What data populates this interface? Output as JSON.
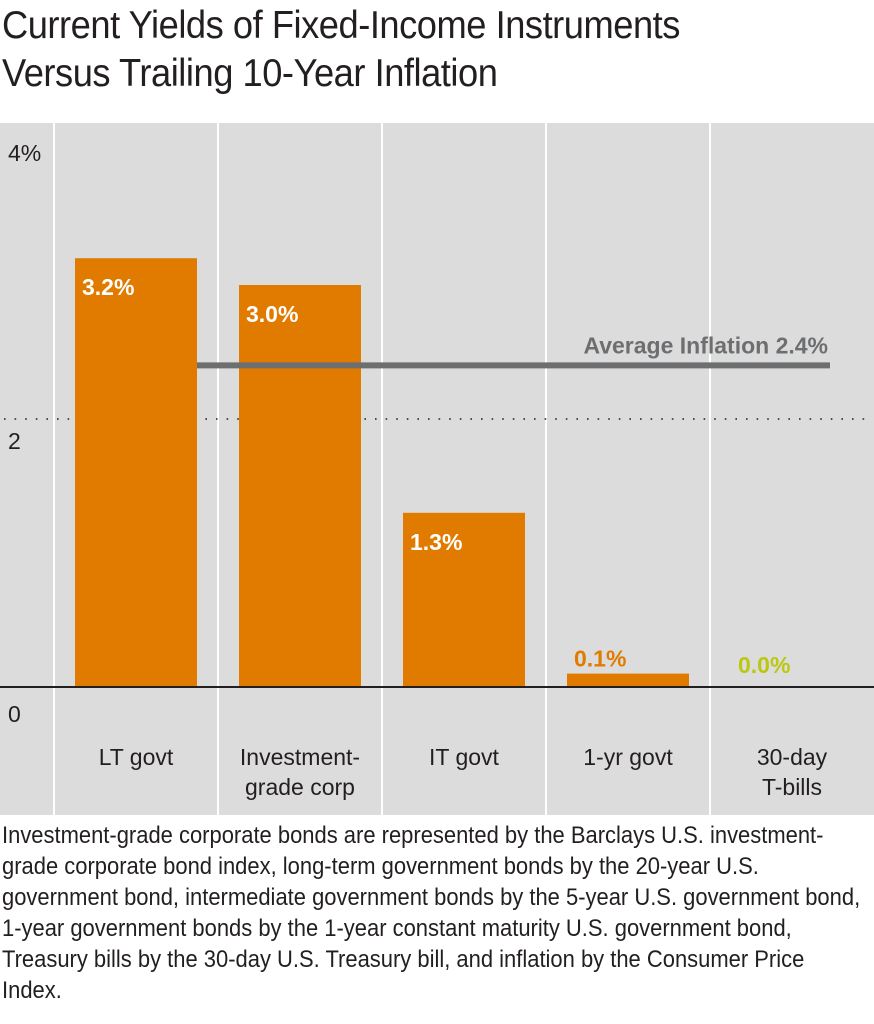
{
  "title_lines": [
    "Current Yields of Fixed-Income Instruments",
    "Versus Trailing 10-Year Inflation"
  ],
  "footnote": "Investment-grade corporate bonds are represented by the Barclays U.S. investment-grade corporate bond index, long-term government bonds by the 20-year U.S. government bond, intermediate government bonds by the 5-year U.S. government bond, 1-year government bonds by the 1-year constant maturity U.S. government bond, Treasury bills by the 30-day U.S. Treasury bill, and inflation by the Consumer Price Index.",
  "chart_data": {
    "type": "bar",
    "title": "Current Yields of Fixed-Income Instruments Versus Trailing 10-Year Inflation",
    "categories": [
      {
        "lines": [
          "LT govt"
        ]
      },
      {
        "lines": [
          "Investment-",
          "grade corp"
        ]
      },
      {
        "lines": [
          "IT govt"
        ]
      },
      {
        "lines": [
          "1-yr govt"
        ]
      },
      {
        "lines": [
          "30-day",
          "T-bills"
        ]
      }
    ],
    "values": [
      3.2,
      3.0,
      1.3,
      0.1,
      0.0
    ],
    "value_labels": [
      "3.2%",
      "3.0%",
      "1.3%",
      "0.1%",
      "0.0%"
    ],
    "ylim": [
      0,
      4
    ],
    "y_ticks": [
      {
        "value": 4,
        "label": "4%"
      },
      {
        "value": 2,
        "label": "2"
      },
      {
        "value": 0,
        "label": "0"
      }
    ],
    "reference_line": {
      "value": 2.4,
      "label": "Average Inflation 2.4%"
    },
    "colors": {
      "bar": "#e07b00",
      "bar_label_inside": "#ffffff",
      "bar_label_outside": "#e07b00",
      "bar_label_zero": "#bcc70f",
      "plot_bg": "#dcdcdc",
      "inflation_line": "#6d6e70",
      "axis": "#231f20",
      "gridline_dots": "#231f20",
      "column_divider": "#ffffff"
    }
  }
}
